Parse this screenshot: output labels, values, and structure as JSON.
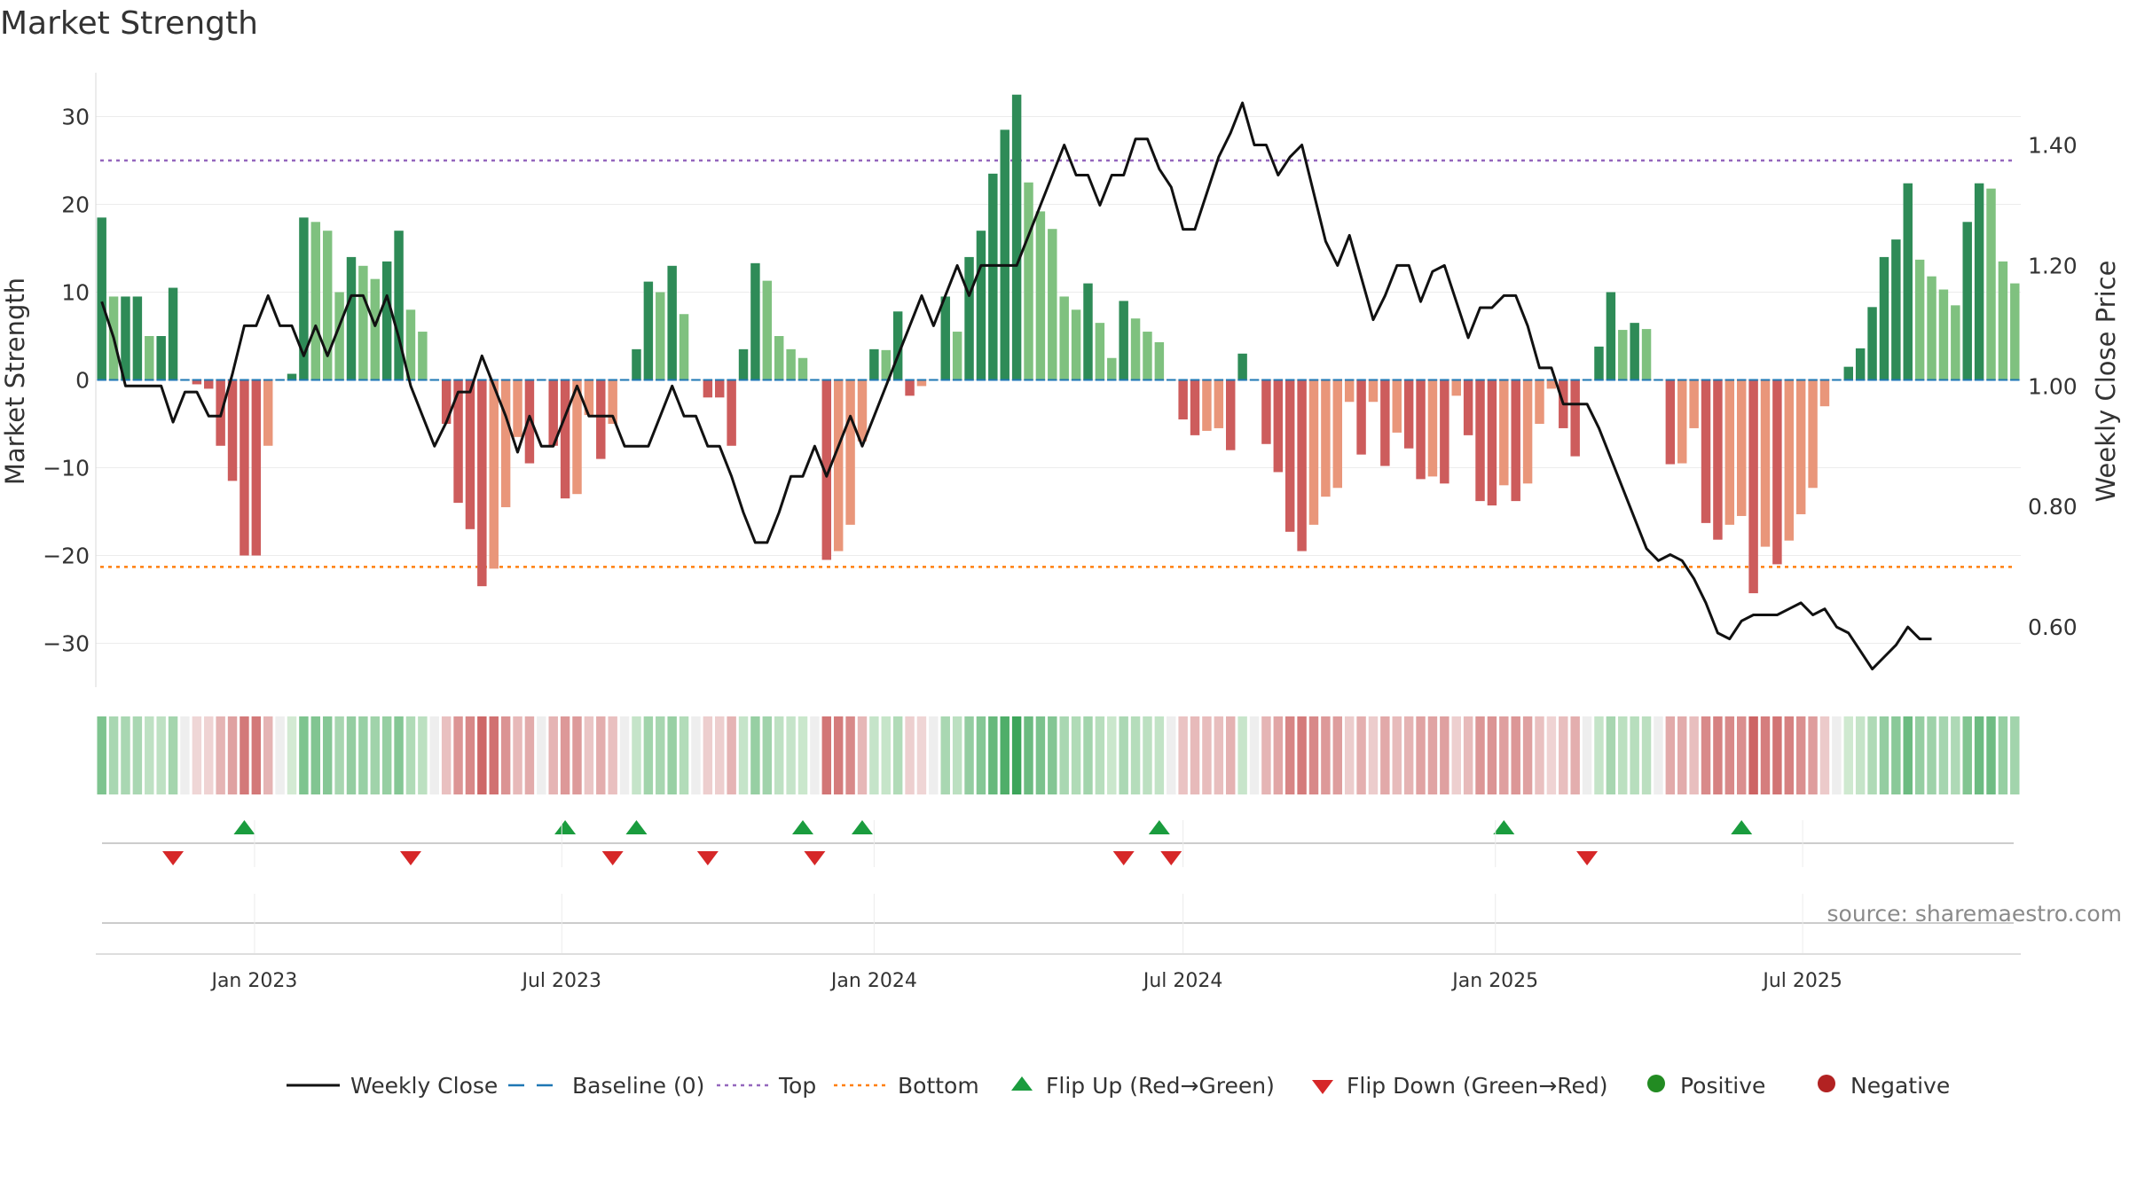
{
  "chart_data": {
    "type": "bar",
    "title": "Market Strength",
    "ylabel": "Market Strength",
    "y2label": "Weekly Close Price",
    "source": "source: sharemaestro.com",
    "ylim": [
      -35,
      35
    ],
    "y2lim": [
      0.5,
      1.52
    ],
    "y_ticks": [
      -30,
      -20,
      -10,
      0,
      10,
      20,
      30
    ],
    "y_tick_labels": [
      "−30",
      "−20",
      "−10",
      "0",
      "10",
      "20",
      "30"
    ],
    "y2_ticks": [
      0.6,
      0.8,
      1.0,
      1.2,
      1.4
    ],
    "y2_tick_labels": [
      "0.60",
      "0.80",
      "1.00",
      "1.20",
      "1.40"
    ],
    "x_start": "2022-10-03",
    "x_end": "2025-09-15",
    "x_ticks": [
      {
        "date": "2023-01-01",
        "label": "Jan 2023"
      },
      {
        "date": "2023-07-01",
        "label": "Jul 2023"
      },
      {
        "date": "2024-01-01",
        "label": "Jan 2024"
      },
      {
        "date": "2024-07-01",
        "label": "Jul 2024"
      },
      {
        "date": "2025-01-01",
        "label": "Jan 2025"
      },
      {
        "date": "2025-07-01",
        "label": "Jul 2025"
      }
    ],
    "top_level": 25,
    "bottom_level": -21.3,
    "colors": {
      "positive_strong": "#2e8b57",
      "positive_weak": "#7fc17f",
      "negative_strong": "#cd5c5c",
      "negative_weak": "#e9967a",
      "line": "#111111",
      "baseline": "#1f77b4",
      "top": "#9467bd",
      "bottom": "#ff7f0e",
      "flip_up": "#1a9c3e",
      "flip_down": "#d62728",
      "positive_dot": "#228b22",
      "negative_dot": "#b22222"
    },
    "strength": [
      18.5,
      9.5,
      9.5,
      9.5,
      5,
      5,
      10.5,
      0,
      -0.5,
      -1,
      -7.5,
      -11.5,
      -20,
      -20,
      -7.5,
      0,
      0.7,
      18.5,
      18,
      17,
      10,
      14,
      13,
      11.5,
      13.5,
      17,
      8,
      5.5,
      0,
      -5,
      -14,
      -17,
      -23.5,
      -21.5,
      -14.5,
      -6.5,
      -9.5,
      0,
      -7.5,
      -13.5,
      -13,
      -4,
      -9,
      -5,
      0,
      3.5,
      11.2,
      10,
      13,
      7.5,
      0,
      -2,
      -2,
      -7.5,
      3.5,
      13.3,
      11.3,
      5,
      3.5,
      2.5,
      0,
      -20.5,
      -19.5,
      -16.5,
      -7,
      3.5,
      3.4,
      7.8,
      -1.8,
      -0.7,
      0,
      9.5,
      5.5,
      14,
      17,
      23.5,
      28.5,
      32.5,
      22.5,
      19.2,
      17.2,
      9.5,
      8,
      11,
      6.5,
      2.5,
      9,
      7,
      5.5,
      4.3,
      0,
      -4.5,
      -6.3,
      -5.8,
      -5.5,
      -8,
      3,
      0,
      -7.3,
      -10.5,
      -17.3,
      -19.5,
      -16.5,
      -13.3,
      -12.3,
      -2.5,
      -8.5,
      -2.5,
      -9.8,
      -6,
      -7.8,
      -11.3,
      -11,
      -11.8,
      -1.8,
      -6.3,
      -13.8,
      -14.3,
      -12,
      -13.8,
      -11.8,
      -5,
      -1,
      -5.5,
      -8.7,
      0,
      3.8,
      10,
      5.7,
      6.5,
      5.8,
      0,
      -9.6,
      -9.5,
      -5.5,
      -16.3,
      -18.2,
      -16.5,
      -15.5,
      -24.3,
      -19,
      -21,
      -18.3,
      -15.3,
      -12.3,
      -3,
      0,
      1.5,
      3.6,
      8.3,
      14,
      16,
      22.4,
      13.7,
      11.8,
      10.3,
      8.5,
      18,
      22.4,
      21.8,
      13.5,
      11
    ],
    "weekly_close": [
      1.14,
      1.08,
      1.0,
      1.0,
      1.0,
      1.0,
      0.94,
      0.99,
      0.99,
      0.95,
      0.95,
      1.02,
      1.1,
      1.1,
      1.15,
      1.1,
      1.1,
      1.05,
      1.1,
      1.05,
      1.1,
      1.15,
      1.15,
      1.1,
      1.15,
      1.08,
      1.0,
      0.95,
      0.9,
      0.94,
      0.99,
      0.99,
      1.05,
      1.0,
      0.95,
      0.89,
      0.95,
      0.9,
      0.9,
      0.95,
      1.0,
      0.95,
      0.95,
      0.95,
      0.9,
      0.9,
      0.9,
      0.95,
      1.0,
      0.95,
      0.95,
      0.9,
      0.9,
      0.85,
      0.79,
      0.74,
      0.74,
      0.79,
      0.85,
      0.85,
      0.9,
      0.85,
      0.9,
      0.95,
      0.9,
      0.95,
      1.0,
      1.05,
      1.1,
      1.15,
      1.1,
      1.15,
      1.2,
      1.15,
      1.2,
      1.2,
      1.2,
      1.2,
      1.25,
      1.3,
      1.35,
      1.4,
      1.35,
      1.35,
      1.3,
      1.35,
      1.35,
      1.41,
      1.41,
      1.36,
      1.33,
      1.26,
      1.26,
      1.32,
      1.38,
      1.42,
      1.47,
      1.4,
      1.4,
      1.35,
      1.38,
      1.4,
      1.32,
      1.24,
      1.2,
      1.25,
      1.18,
      1.11,
      1.15,
      1.2,
      1.2,
      1.14,
      1.19,
      1.2,
      1.14,
      1.08,
      1.13,
      1.13,
      1.15,
      1.15,
      1.1,
      1.03,
      1.03,
      0.97,
      0.97,
      0.97,
      0.93,
      0.88,
      0.83,
      0.78,
      0.73,
      0.71,
      0.72,
      0.71,
      0.68,
      0.64,
      0.59,
      0.58,
      0.61,
      0.62,
      0.62,
      0.62,
      0.63,
      0.64,
      0.62,
      0.63,
      0.6,
      0.59,
      0.56,
      0.53,
      0.55,
      0.57,
      0.6,
      0.58,
      0.58
    ],
    "flip_up": [
      "2022-12-26",
      "2023-07-03",
      "2023-08-14",
      "2023-11-20",
      "2023-12-25",
      "2024-06-17",
      "2025-01-06",
      "2025-05-26"
    ],
    "flip_down": [
      "2022-11-14",
      "2023-04-03",
      "2023-07-31",
      "2023-09-25",
      "2023-11-27",
      "2024-05-27",
      "2024-06-24",
      "2025-02-24"
    ],
    "legend": [
      {
        "label": "Weekly Close",
        "kind": "line"
      },
      {
        "label": "Baseline (0)",
        "kind": "dash"
      },
      {
        "label": "Top",
        "kind": "dot-top"
      },
      {
        "label": "Bottom",
        "kind": "dot-bottom"
      },
      {
        "label": "Flip Up (Red→Green)",
        "kind": "tri-up"
      },
      {
        "label": "Flip Down (Green→Red)",
        "kind": "tri-down"
      },
      {
        "label": "Positive",
        "kind": "dot-pos"
      },
      {
        "label": "Negative",
        "kind": "dot-neg"
      }
    ]
  }
}
